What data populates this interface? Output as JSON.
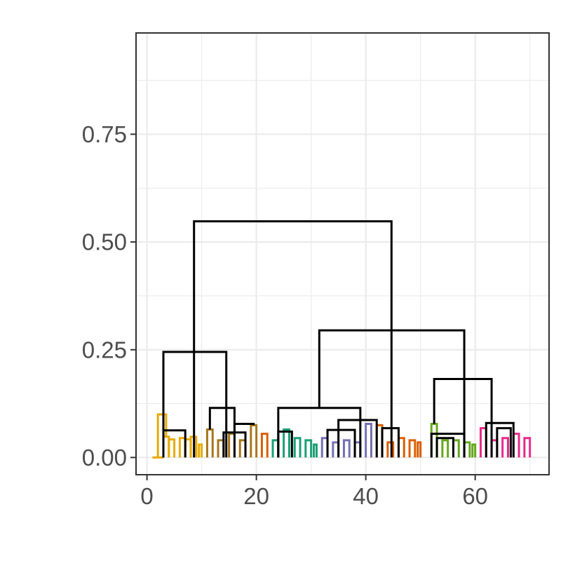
{
  "chart_data": {
    "type": "dendrogram",
    "title": "",
    "xlabel": "",
    "ylabel": "",
    "xlim": [
      -2.0,
      73.5
    ],
    "ylim": [
      -0.04,
      0.985
    ],
    "x_ticks": [
      0,
      20,
      40,
      60
    ],
    "x_tick_labels": [
      "0",
      "20",
      "40",
      "60"
    ],
    "y_ticks": [
      0.0,
      0.25,
      0.5,
      0.75
    ],
    "y_tick_labels": [
      "0.00",
      "0.25",
      "0.50",
      "0.75"
    ],
    "grid": true,
    "n_leaves": 70,
    "colors": {
      "gold": "#e6ab02",
      "brown": "#a6761d",
      "teal": "#1b9e77",
      "purple": "#7570b3",
      "orange": "#d95f02",
      "green": "#66a61e",
      "pink": "#e7298a",
      "black": "#000000"
    },
    "merges": [
      {
        "l": 1,
        "r": 2,
        "h": 0.0,
        "c": "gold"
      },
      {
        "l": 1.5,
        "r": 3,
        "h": 0.0,
        "c": "gold"
      },
      {
        "l": 4,
        "r": 5,
        "h": 0.042,
        "c": "gold"
      },
      {
        "l": 3,
        "r": 4,
        "h": 0.048,
        "c": "gold"
      },
      {
        "l": 6,
        "r": 7,
        "h": 0.045,
        "c": "gold"
      },
      {
        "l": 8,
        "r": 9,
        "h": 0.048,
        "c": "gold"
      },
      {
        "l": 7,
        "r": 8,
        "h": 0.042,
        "c": "gold"
      },
      {
        "l": 9.5,
        "r": 10,
        "h": 0.03,
        "c": "gold"
      },
      {
        "l": 2,
        "r": 3.5,
        "h": 0.1,
        "c": "gold"
      },
      {
        "l": 11,
        "r": 12,
        "h": 0.065,
        "c": "brown"
      },
      {
        "l": 13,
        "r": 14,
        "h": 0.04,
        "c": "brown"
      },
      {
        "l": 15,
        "r": 16,
        "h": 0.055,
        "c": "brown"
      },
      {
        "l": 17,
        "r": 18,
        "h": 0.04,
        "c": "brown"
      },
      {
        "l": 19,
        "r": 20,
        "h": 0.075,
        "c": "brown"
      },
      {
        "l": 21,
        "r": 22,
        "h": 0.055,
        "c": "orange"
      },
      {
        "l": 23,
        "r": 24,
        "h": 0.04,
        "c": "teal"
      },
      {
        "l": 25,
        "r": 26,
        "h": 0.065,
        "c": "teal"
      },
      {
        "l": 27,
        "r": 28,
        "h": 0.045,
        "c": "teal"
      },
      {
        "l": 29,
        "r": 30,
        "h": 0.04,
        "c": "teal"
      },
      {
        "l": 30.5,
        "r": 31,
        "h": 0.03,
        "c": "teal"
      },
      {
        "l": 32,
        "r": 33,
        "h": 0.045,
        "c": "purple"
      },
      {
        "l": 34,
        "r": 35,
        "h": 0.035,
        "c": "purple"
      },
      {
        "l": 36,
        "r": 37,
        "h": 0.04,
        "c": "purple"
      },
      {
        "l": 38,
        "r": 39,
        "h": 0.035,
        "c": "purple"
      },
      {
        "l": 40,
        "r": 41,
        "h": 0.078,
        "c": "purple"
      },
      {
        "l": 42,
        "r": 43,
        "h": 0.075,
        "c": "orange"
      },
      {
        "l": 44,
        "r": 45,
        "h": 0.035,
        "c": "orange"
      },
      {
        "l": 46,
        "r": 47,
        "h": 0.045,
        "c": "orange"
      },
      {
        "l": 48,
        "r": 49,
        "h": 0.04,
        "c": "orange"
      },
      {
        "l": 49.5,
        "r": 50,
        "h": 0.035,
        "c": "orange"
      },
      {
        "l": 52,
        "r": 53,
        "h": 0.078,
        "c": "green"
      },
      {
        "l": 54,
        "r": 55,
        "h": 0.04,
        "c": "green"
      },
      {
        "l": 56,
        "r": 57,
        "h": 0.04,
        "c": "green"
      },
      {
        "l": 58,
        "r": 59,
        "h": 0.035,
        "c": "green"
      },
      {
        "l": 59.5,
        "r": 60,
        "h": 0.03,
        "c": "green"
      },
      {
        "l": 61,
        "r": 62,
        "h": 0.068,
        "c": "pink"
      },
      {
        "l": 63,
        "r": 64,
        "h": 0.04,
        "c": "pink"
      },
      {
        "l": 65,
        "r": 66,
        "h": 0.045,
        "c": "pink"
      },
      {
        "l": 67,
        "r": 68,
        "h": 0.055,
        "c": "pink"
      },
      {
        "l": 69,
        "r": 70,
        "h": 0.045,
        "c": "pink"
      },
      {
        "l": 3,
        "r": 7,
        "h": 0.063,
        "c": "black"
      },
      {
        "l": 11.5,
        "r": 16,
        "h": 0.115,
        "c": "black"
      },
      {
        "l": 14,
        "r": 18,
        "h": 0.058,
        "c": "black"
      },
      {
        "l": 16,
        "r": 19.5,
        "h": 0.078,
        "c": "black"
      },
      {
        "l": 3,
        "r": 14.5,
        "h": 0.245,
        "c": "black"
      },
      {
        "l": 24,
        "r": 39,
        "h": 0.115,
        "c": "black"
      },
      {
        "l": 24,
        "r": 26.5,
        "h": 0.06,
        "c": "black"
      },
      {
        "l": 33,
        "r": 38,
        "h": 0.064,
        "c": "black"
      },
      {
        "l": 35,
        "r": 42,
        "h": 0.087,
        "c": "black"
      },
      {
        "l": 43,
        "r": 46,
        "h": 0.068,
        "c": "black"
      },
      {
        "l": 52,
        "r": 58,
        "h": 0.055,
        "c": "black"
      },
      {
        "l": 53,
        "r": 56,
        "h": 0.045,
        "c": "black"
      },
      {
        "l": 52.5,
        "r": 63,
        "h": 0.182,
        "c": "black"
      },
      {
        "l": 62,
        "r": 67,
        "h": 0.08,
        "c": "black"
      },
      {
        "l": 64,
        "r": 66.5,
        "h": 0.068,
        "c": "black"
      },
      {
        "l": 31.5,
        "r": 58,
        "h": 0.295,
        "c": "black"
      },
      {
        "l": 8.6,
        "r": 44.7,
        "h": 0.548,
        "c": "black"
      }
    ]
  }
}
